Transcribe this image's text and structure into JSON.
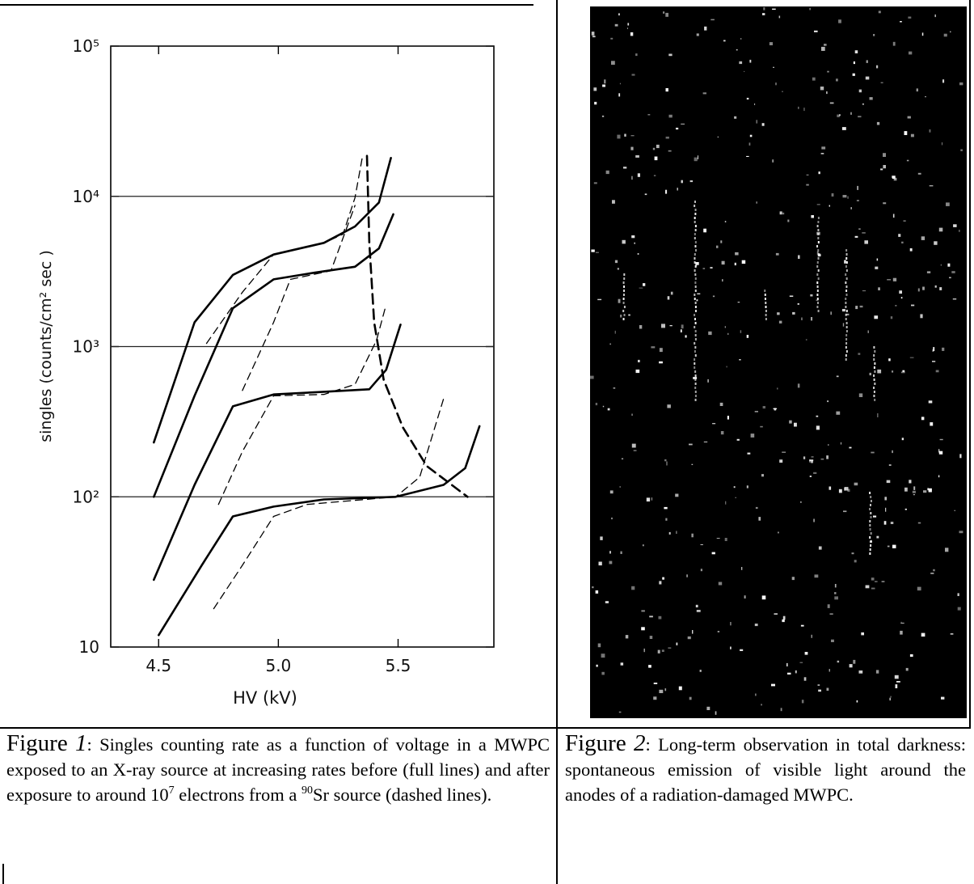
{
  "chart_data": {
    "type": "line",
    "ylabel": "singles (counts/cm² sec )",
    "xlabel": "HV (kV)",
    "xlim": [
      4.3,
      5.9
    ],
    "xticks": [
      4.5,
      {
        "value": 5.0,
        "label": "5.0"
      },
      5.5
    ],
    "ylim": [
      10,
      100000
    ],
    "yscale": "log",
    "yticks": [
      10,
      {
        "value": 100,
        "label": "10²"
      },
      {
        "value": 1000,
        "label": "10³"
      },
      {
        "value": 10000,
        "label": "10⁴"
      },
      {
        "value": 100000,
        "label": "10⁵"
      }
    ],
    "grid": true,
    "series": [
      {
        "color": "#000",
        "linestyle": "solid",
        "linewidth": 2.6,
        "x": [
          4.48,
          4.65,
          4.81,
          4.98,
          5.19,
          5.32,
          5.42,
          5.47
        ],
        "values": [
          230,
          1450,
          3000,
          4100,
          4900,
          6300,
          9100,
          18000
        ]
      },
      {
        "color": "#000",
        "linestyle": "solid",
        "linewidth": 2.6,
        "x": [
          4.48,
          4.65,
          4.81,
          4.98,
          5.15,
          5.32,
          5.42,
          5.48
        ],
        "values": [
          100,
          470,
          1800,
          2800,
          3100,
          3400,
          4500,
          7600
        ]
      },
      {
        "color": "#000",
        "linestyle": "solid",
        "linewidth": 2.6,
        "x": [
          4.48,
          4.65,
          4.81,
          4.98,
          5.19,
          5.38,
          5.45,
          5.51
        ],
        "values": [
          28,
          120,
          400,
          480,
          500,
          520,
          700,
          1400
        ]
      },
      {
        "color": "#000",
        "linestyle": "solid",
        "linewidth": 2.6,
        "x": [
          4.5,
          4.68,
          4.81,
          4.98,
          5.19,
          5.49,
          5.69,
          5.78,
          5.84
        ],
        "values": [
          12,
          35,
          74,
          86,
          96,
          100,
          120,
          155,
          295
        ]
      },
      {
        "color": "#000",
        "linestyle": "dashed",
        "linewidth": 1.3,
        "x": [
          4.7,
          4.85,
          4.98,
          5.19,
          5.27,
          5.32,
          5.35
        ],
        "values": [
          1050,
          2300,
          4100,
          4900,
          5600,
          9800,
          18000
        ]
      },
      {
        "color": "#000",
        "linestyle": "dashed",
        "linewidth": 1.3,
        "x": [
          4.85,
          4.98,
          5.05,
          5.22,
          5.32
        ],
        "values": [
          510,
          1450,
          2800,
          3200,
          8700
        ]
      },
      {
        "color": "#000",
        "linestyle": "dashed",
        "linewidth": 1.3,
        "x": [
          4.75,
          4.85,
          4.98,
          5.19,
          5.32,
          5.41,
          5.45
        ],
        "values": [
          89,
          200,
          470,
          480,
          560,
          1100,
          1900
        ]
      },
      {
        "color": "#000",
        "linestyle": "dashed",
        "linewidth": 1.3,
        "x": [
          4.73,
          4.85,
          4.98,
          5.12,
          5.49,
          5.59,
          5.69
        ],
        "values": [
          18,
          35,
          74,
          89,
          100,
          135,
          450
        ]
      },
      {
        "color": "#000",
        "linestyle": "dashed",
        "linewidth": 2.6,
        "x": [
          5.37,
          5.38,
          5.4,
          5.44,
          5.52,
          5.62,
          5.79
        ],
        "values": [
          18600,
          4900,
          1450,
          600,
          290,
          160,
          100
        ]
      }
    ]
  },
  "figures": [
    {
      "label": "Figure",
      "number": "1",
      "caption": [
        ": Singles counting rate as a function of voltage in a MWPC exposed to an X-ray source at increasing rates before (full lines) and after exposure to around 10",
        "7",
        " electrons from a ",
        "90",
        "Sr source (dashed lines)."
      ]
    },
    {
      "label": "Figure",
      "number": "2",
      "caption": [
        ": Long-term observation in total darkness: spontaneous emission of visible light around the anodes of a radiation-damaged MWPC."
      ]
    }
  ]
}
